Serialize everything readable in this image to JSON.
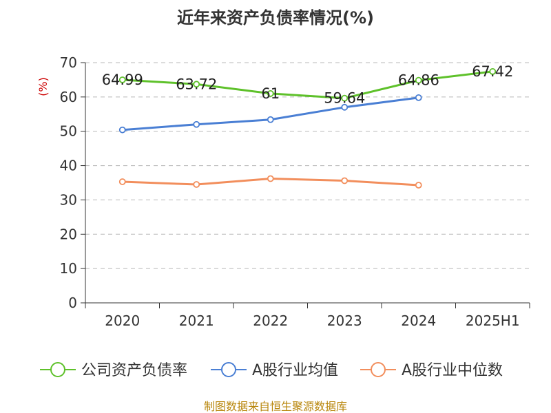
{
  "chart_data": {
    "type": "line",
    "title": "近年来资产负债率情况(%)",
    "ylabel": "(%)",
    "xlabel": "",
    "categories": [
      "2020",
      "2021",
      "2022",
      "2023",
      "2024",
      "2025H1"
    ],
    "ylim": [
      0,
      70
    ],
    "yticks": [
      0,
      10,
      20,
      30,
      40,
      50,
      60,
      70
    ],
    "grid": true,
    "legend_position": "bottom",
    "series": [
      {
        "name": "公司资产负债率",
        "color": "#5ec12a",
        "values": [
          64.99,
          63.72,
          61,
          59.64,
          64.86,
          67.42
        ],
        "labels": [
          "64.99",
          "63.72",
          "61",
          "59.64",
          "64.86",
          "67.42"
        ]
      },
      {
        "name": "A股行业均值",
        "color": "#4a7fd4",
        "values": [
          50.4,
          52.0,
          53.4,
          57.0,
          59.8,
          null
        ]
      },
      {
        "name": "A股行业中位数",
        "color": "#f28e5c",
        "values": [
          35.3,
          34.5,
          36.2,
          35.6,
          34.3,
          null
        ]
      }
    ]
  },
  "source": "制图数据来自恒生聚源数据库"
}
